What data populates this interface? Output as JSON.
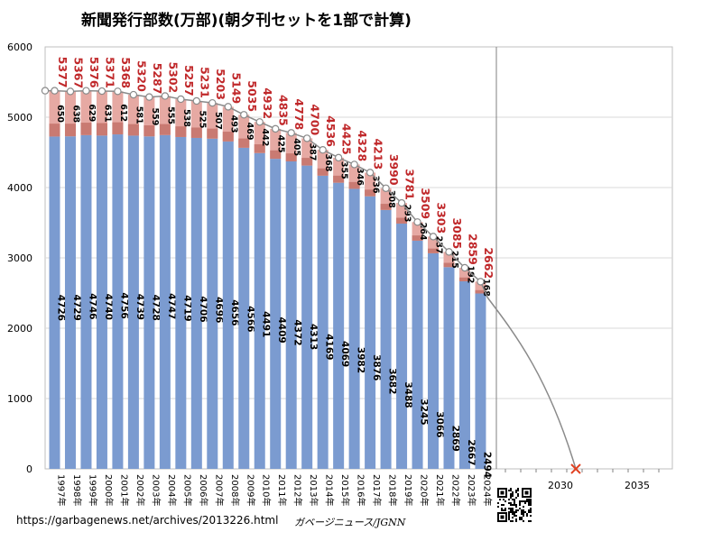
{
  "chart_data": {
    "type": "bar",
    "title": "新聞発行部数(万部)(朝夕刊セットを1部で計算)",
    "categories": [
      "1997年",
      "1998年",
      "1999年",
      "2000年",
      "2001年",
      "2002年",
      "2003年",
      "2004年",
      "2005年",
      "2006年",
      "2007年",
      "2008年",
      "2009年",
      "2010年",
      "2011年",
      "2012年",
      "2013年",
      "2014年",
      "2015年",
      "2016年",
      "2017年",
      "2018年",
      "2019年",
      "2020年",
      "2021年",
      "2022年",
      "2023年",
      "2024年"
    ],
    "series": [
      {
        "values": [
          4726,
          4729,
          4746,
          4740,
          4756,
          4739,
          4728,
          4747,
          4719,
          4706,
          4696,
          4656,
          4566,
          4491,
          4409,
          4372,
          4313,
          4169,
          4069,
          3982,
          3876,
          3682,
          3488,
          3245,
          3066,
          2869,
          2667,
          2494
        ]
      },
      {
        "values": [
          650,
          638,
          629,
          631,
          612,
          581,
          559,
          555,
          538,
          525,
          507,
          493,
          469,
          442,
          425,
          405,
          387,
          368,
          355,
          346,
          336,
          308,
          293,
          264,
          237,
          215,
          192,
          168
        ]
      }
    ],
    "totals": [
      5377,
      5367,
      5376,
      5371,
      5368,
      5320,
      5287,
      5302,
      5257,
      5231,
      5203,
      5149,
      5035,
      4932,
      4835,
      4778,
      4700,
      4536,
      4425,
      4328,
      4213,
      3990,
      3781,
      3509,
      3303,
      3085,
      2859,
      2662
    ],
    "trend_end": {
      "x": "2031",
      "y": 0
    },
    "ylim": [
      0,
      6000
    ],
    "yticks": [
      "0",
      "1000",
      "2000",
      "3000",
      "4000",
      "5000",
      "6000"
    ],
    "extra_xticks": [
      "2030",
      "2035"
    ],
    "colors": {
      "bar_main": "#7b9bd0",
      "bar_top": "#e6a9a3",
      "bar_band": "#c97a72",
      "label_total": "#c0282a",
      "trend": "#8a8a8a",
      "marker": "#e04020"
    }
  },
  "footer": {
    "url": "https://garbagenews.net/archives/2013226.html",
    "credit": "ガベージニュース/JGNN"
  }
}
